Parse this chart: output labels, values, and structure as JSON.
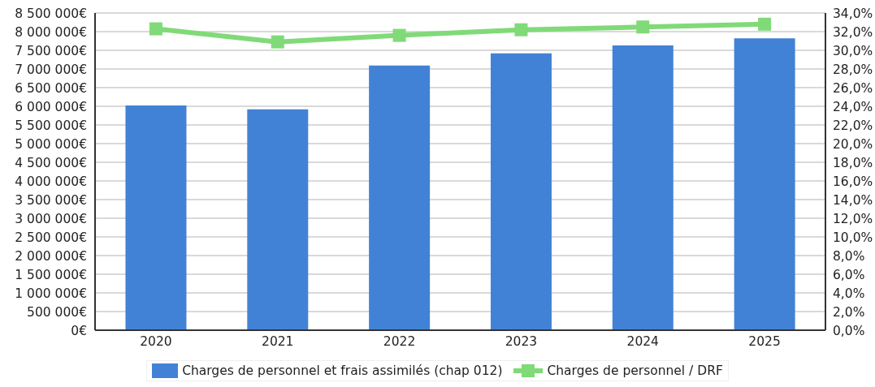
{
  "chart_data": {
    "type": "bar",
    "categories": [
      "2020",
      "2021",
      "2022",
      "2023",
      "2024",
      "2025"
    ],
    "series": [
      {
        "name": "Charges de personnel et frais assimilés (chap 012)",
        "color": "#4282d6",
        "values": [
          6020000,
          5920000,
          7090000,
          7420000,
          7630000,
          7820000
        ]
      },
      {
        "name": "Charges de personnel / DRF",
        "type": "line",
        "axis": "y2",
        "color": "#80da78",
        "values": [
          32.3,
          30.9,
          31.6,
          32.2,
          32.5,
          32.8
        ]
      }
    ],
    "ylim": [
      0,
      8500000
    ],
    "yticks": [
      {
        "value": 0,
        "label": "0€"
      },
      {
        "value": 500000,
        "label": "500 000€"
      },
      {
        "value": 1000000,
        "label": "1 000 000€"
      },
      {
        "value": 1500000,
        "label": "1 500 000€"
      },
      {
        "value": 2000000,
        "label": "2 000 000€"
      },
      {
        "value": 2500000,
        "label": "2 500 000€"
      },
      {
        "value": 3000000,
        "label": "3 000 000€"
      },
      {
        "value": 3500000,
        "label": "3 500 000€"
      },
      {
        "value": 4000000,
        "label": "4 000 000€"
      },
      {
        "value": 4500000,
        "label": "4 500 000€"
      },
      {
        "value": 5000000,
        "label": "5 000 000€"
      },
      {
        "value": 5500000,
        "label": "5 500 000€"
      },
      {
        "value": 6000000,
        "label": "6 000 000€"
      },
      {
        "value": 6500000,
        "label": "6 500 000€"
      },
      {
        "value": 7000000,
        "label": "7 000 000€"
      },
      {
        "value": 7500000,
        "label": "7 500 000€"
      },
      {
        "value": 8000000,
        "label": "8 000 000€"
      },
      {
        "value": 8500000,
        "label": "8 500 000€"
      }
    ],
    "y2lim": [
      0,
      34
    ],
    "y2ticks": [
      {
        "value": 0,
        "label": "0,0%"
      },
      {
        "value": 2,
        "label": "2,0%"
      },
      {
        "value": 4,
        "label": "4,0%"
      },
      {
        "value": 6,
        "label": "6,0%"
      },
      {
        "value": 8,
        "label": "8,0%"
      },
      {
        "value": 10,
        "label": "10,0%"
      },
      {
        "value": 12,
        "label": "12,0%"
      },
      {
        "value": 14,
        "label": "14,0%"
      },
      {
        "value": 16,
        "label": "16,0%"
      },
      {
        "value": 18,
        "label": "18,0%"
      },
      {
        "value": 20,
        "label": "20,0%"
      },
      {
        "value": 22,
        "label": "22,0%"
      },
      {
        "value": 24,
        "label": "24,0%"
      },
      {
        "value": 26,
        "label": "26,0%"
      },
      {
        "value": 28,
        "label": "28,0%"
      },
      {
        "value": 30,
        "label": "30,0%"
      },
      {
        "value": 32,
        "label": "32,0%"
      },
      {
        "value": 34,
        "label": "34,0%"
      }
    ],
    "grid": "y",
    "legend": "bottom",
    "marker": "square"
  }
}
